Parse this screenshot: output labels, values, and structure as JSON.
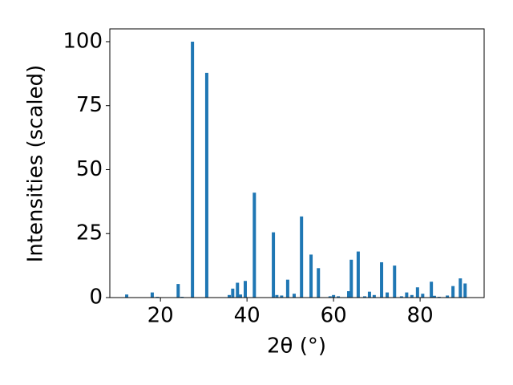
{
  "chart_data": {
    "type": "bar",
    "xlabel": "2θ (°)",
    "ylabel": "Intensities (scaled)",
    "x": [
      12.2,
      18.1,
      19.3,
      24.1,
      25.0,
      27.4,
      30.7,
      35.9,
      36.7,
      37.8,
      38.5,
      39.6,
      41.7,
      46.1,
      46.9,
      48.0,
      49.4,
      50.9,
      52.6,
      54.8,
      56.5,
      59.2,
      60.0,
      61.1,
      63.5,
      64.1,
      65.7,
      67.2,
      68.3,
      69.4,
      71.1,
      72.4,
      74.1,
      75.7,
      76.9,
      78.1,
      79.4,
      80.6,
      82.6,
      83.3,
      84.4,
      86.3,
      87.6,
      89.3,
      90.4
    ],
    "values": [
      1.2,
      2,
      0.3,
      5.3,
      0.3,
      100,
      87.8,
      1,
      3.5,
      5.8,
      1.2,
      6.5,
      41,
      25.5,
      1,
      0.8,
      7,
      1.5,
      31.7,
      16.8,
      11.5,
      0.5,
      1,
      0.5,
      2.5,
      14.8,
      18,
      0.5,
      2.3,
      1,
      13.8,
      2,
      12.5,
      0.5,
      2,
      1,
      4,
      1.5,
      6.2,
      0.7,
      0.3,
      0.8,
      4.5,
      7.5,
      5.5
    ],
    "color": "#1f77b4",
    "xlim": [
      8.3,
      94.8
    ],
    "xticks": [
      20,
      40,
      60,
      80
    ],
    "ylim": [
      0,
      105
    ],
    "yticks": [
      0,
      25,
      50,
      75,
      100
    ],
    "grid": false
  }
}
